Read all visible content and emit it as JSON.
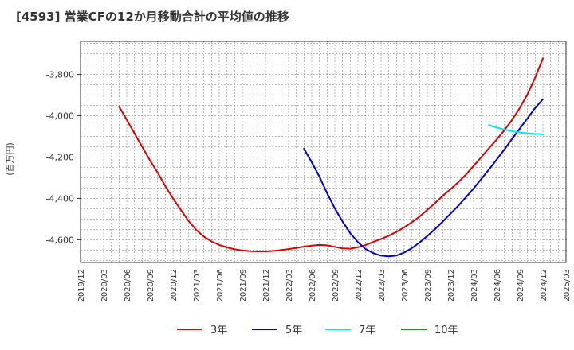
{
  "chart_data": {
    "type": "line",
    "title": "[4593]  営業CFの12か月移動合計の平均値の推移",
    "ylabel": "(百万円)",
    "xlabel": "",
    "ylim": [
      -4710,
      -3640
    ],
    "y_ticks": [
      -3800,
      -4000,
      -4200,
      -4400,
      -4600
    ],
    "y_tick_labels": [
      "-3,800",
      "-4,000",
      "-4,200",
      "-4,400",
      "-4,600"
    ],
    "x_tick_labels": [
      "2019/12",
      "2020/03",
      "2020/06",
      "2020/09",
      "2020/12",
      "2021/03",
      "2021/06",
      "2021/09",
      "2021/12",
      "2022/03",
      "2022/06",
      "2022/09",
      "2022/12",
      "2023/03",
      "2023/06",
      "2023/09",
      "2023/12",
      "2024/03",
      "2024/06",
      "2024/09",
      "2024/12",
      "2025/03"
    ],
    "grid": true,
    "legend_position": "bottom",
    "series": [
      {
        "name": "3年",
        "color": "#dd0000",
        "x": [
          "2020/05",
          "2020/06",
          "2020/07",
          "2020/08",
          "2020/09",
          "2020/10",
          "2020/11",
          "2020/12",
          "2021/01",
          "2021/02",
          "2021/03",
          "2021/04",
          "2021/05",
          "2021/06",
          "2021/07",
          "2021/08",
          "2021/09",
          "2021/10",
          "2021/11",
          "2021/12",
          "2022/01",
          "2022/02",
          "2022/03",
          "2022/04",
          "2022/05",
          "2022/06",
          "2022/07",
          "2022/08",
          "2022/09",
          "2022/10",
          "2022/11",
          "2022/12",
          "2023/01",
          "2023/02",
          "2023/03",
          "2023/04",
          "2023/05",
          "2023/06",
          "2023/07",
          "2023/08",
          "2023/09",
          "2023/10",
          "2023/11",
          "2023/12",
          "2024/01",
          "2024/02",
          "2024/03",
          "2024/04",
          "2024/05",
          "2024/06",
          "2024/07",
          "2024/08",
          "2024/09",
          "2024/10",
          "2024/11",
          "2024/12"
        ],
        "values": [
          -3955,
          -4020,
          -4085,
          -4150,
          -4215,
          -4275,
          -4340,
          -4400,
          -4455,
          -4508,
          -4552,
          -4585,
          -4608,
          -4625,
          -4637,
          -4646,
          -4652,
          -4655,
          -4656,
          -4656,
          -4654,
          -4650,
          -4645,
          -4639,
          -4633,
          -4628,
          -4625,
          -4627,
          -4634,
          -4642,
          -4643,
          -4636,
          -4625,
          -4610,
          -4596,
          -4580,
          -4562,
          -4540,
          -4515,
          -4488,
          -4455,
          -4422,
          -4388,
          -4356,
          -4322,
          -4285,
          -4243,
          -4200,
          -4157,
          -4115,
          -4070,
          -4020,
          -3962,
          -3895,
          -3815,
          -3722
        ]
      },
      {
        "name": "5年",
        "color": "#0000cc",
        "x": [
          "2022/05",
          "2022/06",
          "2022/07",
          "2022/08",
          "2022/09",
          "2022/10",
          "2022/11",
          "2022/12",
          "2023/01",
          "2023/02",
          "2023/03",
          "2023/04",
          "2023/05",
          "2023/06",
          "2023/07",
          "2023/08",
          "2023/09",
          "2023/10",
          "2023/11",
          "2023/12",
          "2024/01",
          "2024/02",
          "2024/03",
          "2024/04",
          "2024/05",
          "2024/06",
          "2024/07",
          "2024/08",
          "2024/09",
          "2024/10",
          "2024/11",
          "2024/12"
        ],
        "values": [
          -4160,
          -4225,
          -4295,
          -4375,
          -4448,
          -4512,
          -4568,
          -4612,
          -4645,
          -4665,
          -4677,
          -4680,
          -4676,
          -4662,
          -4640,
          -4613,
          -4582,
          -4548,
          -4512,
          -4474,
          -4436,
          -4395,
          -4352,
          -4306,
          -4260,
          -4212,
          -4163,
          -4112,
          -4062,
          -4012,
          -3962,
          -3920
        ]
      },
      {
        "name": "7年",
        "color": "#00e5ee",
        "x": [
          "2024/05",
          "2024/06",
          "2024/07",
          "2024/08",
          "2024/09",
          "2024/10",
          "2024/11",
          "2024/12"
        ],
        "values": [
          -4045,
          -4057,
          -4067,
          -4075,
          -4081,
          -4085,
          -4088,
          -4090
        ]
      },
      {
        "name": "10年",
        "color": "#228b22",
        "x": [],
        "values": []
      }
    ]
  }
}
